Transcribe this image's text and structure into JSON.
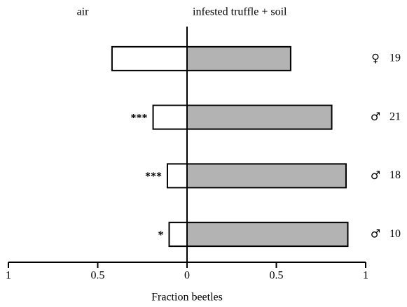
{
  "chart_data": {
    "type": "diverging-bar",
    "xlabel": "Fraction beetles",
    "categories": [
      "♀",
      "♂",
      "♂",
      "♂"
    ],
    "n": [
      19,
      21,
      18,
      10
    ],
    "significance": [
      null,
      "***",
      "***",
      "*"
    ],
    "series": [
      {
        "name": "air",
        "color": "#ffffff",
        "values": [
          -0.42,
          -0.19,
          -0.11,
          -0.1
        ]
      },
      {
        "name": "infested truffle + soil",
        "color": "#b3b3b3",
        "values": [
          0.58,
          0.81,
          0.89,
          0.9
        ]
      }
    ],
    "xlim": [
      -1,
      1
    ],
    "xticks": [
      {
        "value": -1,
        "label": "1"
      },
      {
        "value": -0.5,
        "label": "0.5"
      },
      0,
      0.5,
      1
    ]
  }
}
